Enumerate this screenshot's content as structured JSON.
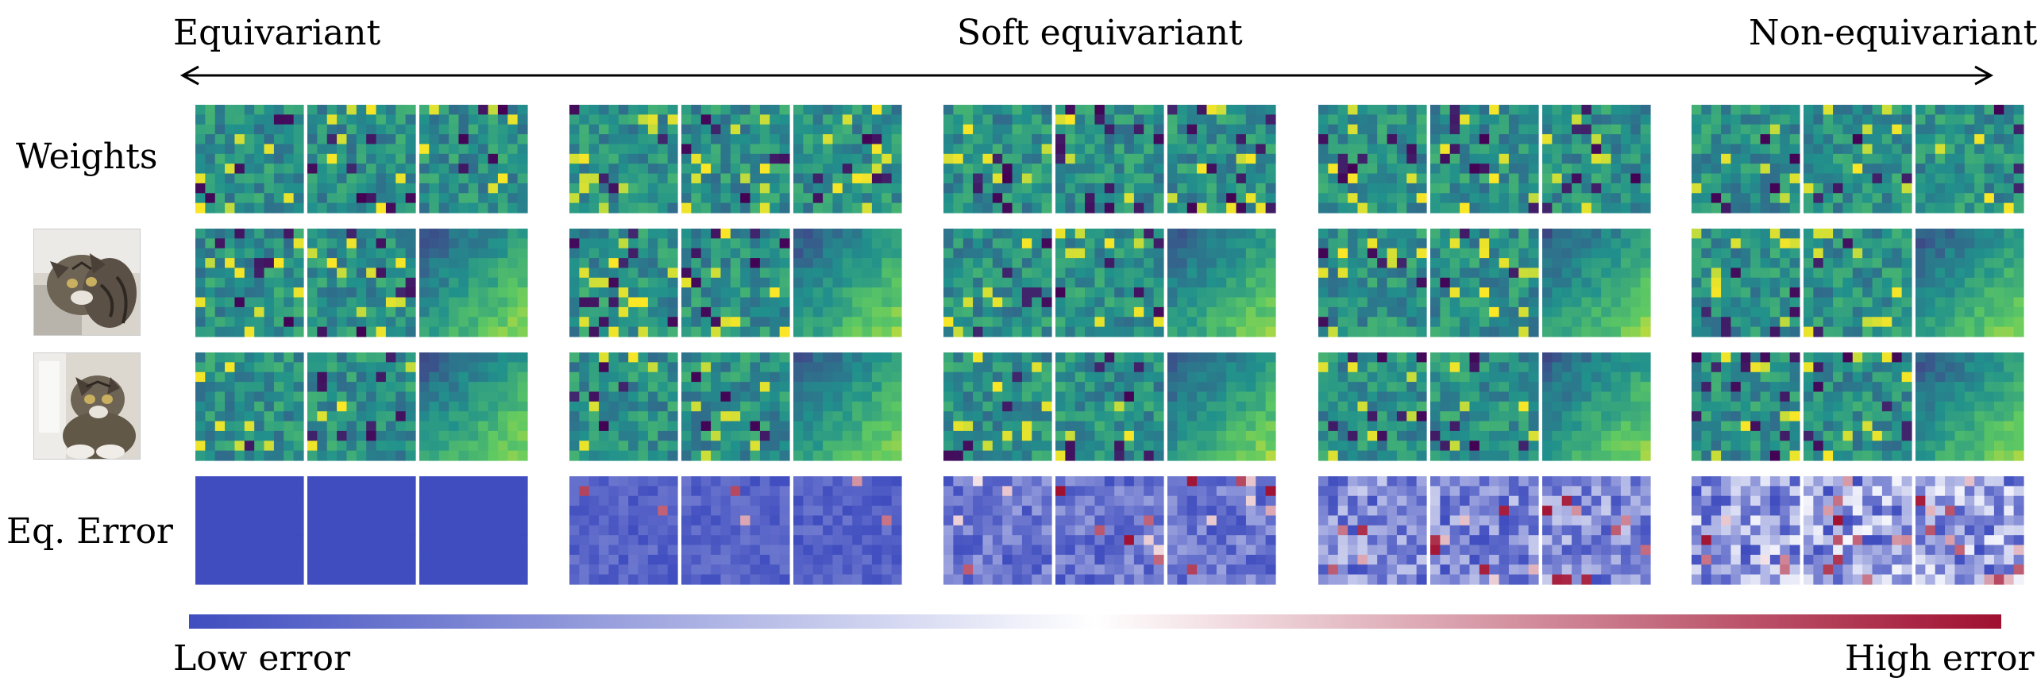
{
  "header": {
    "left_label": "Equivariant",
    "center_label": "Soft equivariant",
    "right_label": "Non-equivariant"
  },
  "rows": {
    "weights_label": "Weights",
    "error_label": "Eq. Error"
  },
  "colorbar": {
    "low_label": "Low error",
    "high_label": "High error",
    "colors": [
      "#3f4dbf",
      "#ffffff",
      "#a01030"
    ]
  },
  "colors": {
    "viridis": [
      "#440154",
      "#3b528b",
      "#21918c",
      "#5ec962",
      "#fde725"
    ],
    "error_base": "#3f4dbf"
  },
  "icons": {
    "input_image": "cat-photo",
    "rotated_input_image": "rotated-cat-photo"
  }
}
